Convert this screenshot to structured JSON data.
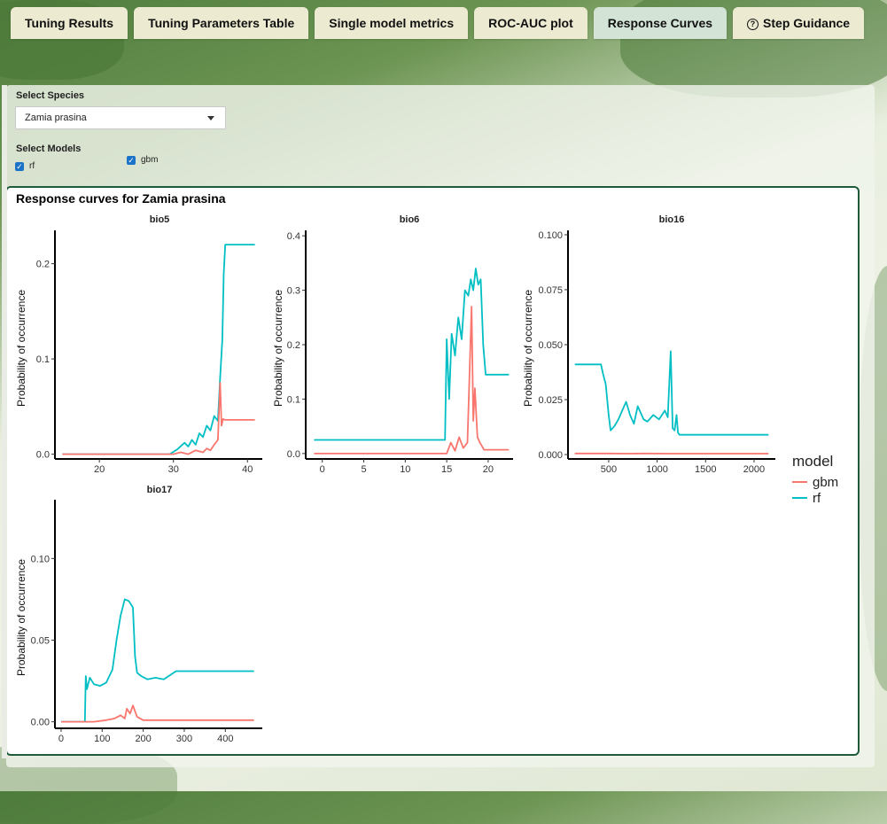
{
  "tabs": [
    {
      "label": "Tuning Results"
    },
    {
      "label": "Tuning Parameters Table"
    },
    {
      "label": "Single model metrics"
    },
    {
      "label": "ROC-AUC plot"
    },
    {
      "label": "Response Curves"
    },
    {
      "label": "Step Guidance"
    }
  ],
  "active_tab": "Response Curves",
  "species": {
    "label": "Select Species",
    "selected": "Zamia prasina"
  },
  "models": {
    "label": "Select Models",
    "options": [
      {
        "label": "rf",
        "checked": true
      },
      {
        "label": "gbm",
        "checked": true
      }
    ]
  },
  "panel": {
    "title": "Response curves for Zamia prasina"
  },
  "colors": {
    "gbm": "#f8766d",
    "rf": "#00bfc4",
    "panel_border": "#1f5a3a",
    "active_tab": "#d3e4d6",
    "tab": "#ecebd2"
  },
  "chart_data": {
    "type": "line",
    "ylabel": "Probability of occurrence",
    "legend": {
      "title": "model",
      "entries": [
        "gbm",
        "rf"
      ],
      "placement": "right"
    },
    "panels": [
      {
        "title": "bio5",
        "xlim": [
          14,
          42
        ],
        "ylim": [
          -0.005,
          0.235
        ],
        "xticks": [
          20,
          30,
          40
        ],
        "yticks": [
          0.0,
          0.1,
          0.2
        ],
        "ytick_labels": [
          "0.0",
          "0.1",
          "0.2"
        ],
        "series": [
          {
            "name": "rf",
            "x": [
              15,
              29.5,
              30.5,
              31.5,
              32,
              32.5,
              33,
              33.5,
              34,
              34.5,
              35,
              35.5,
              36,
              36.3,
              36.6,
              36.8,
              37,
              41
            ],
            "y": [
              0,
              0,
              0.005,
              0.012,
              0.008,
              0.015,
              0.01,
              0.022,
              0.018,
              0.03,
              0.025,
              0.04,
              0.035,
              0.08,
              0.12,
              0.19,
              0.22,
              0.22
            ]
          },
          {
            "name": "gbm",
            "x": [
              15,
              30,
              31,
              32,
              33,
              34,
              34.5,
              35,
              35.5,
              36,
              36.3,
              36.5,
              36.7,
              37,
              41
            ],
            "y": [
              0,
              0,
              0.002,
              0,
              0.004,
              0.002,
              0.006,
              0.004,
              0.01,
              0.015,
              0.075,
              0.03,
              0.037,
              0.036,
              0.036
            ]
          }
        ]
      },
      {
        "title": "bio6",
        "xlim": [
          -2,
          23
        ],
        "ylim": [
          -0.01,
          0.41
        ],
        "xticks": [
          0,
          5,
          10,
          15,
          20
        ],
        "yticks": [
          0.0,
          0.1,
          0.2,
          0.3,
          0.4
        ],
        "ytick_labels": [
          "0.0",
          "0.1",
          "0.2",
          "0.3",
          "0.4"
        ],
        "series": [
          {
            "name": "rf",
            "x": [
              -1,
              14.8,
              15,
              15.3,
              15.6,
              16,
              16.4,
              16.8,
              17.2,
              17.6,
              17.9,
              18.2,
              18.5,
              18.8,
              19.1,
              19.4,
              19.7,
              22.5
            ],
            "y": [
              0.025,
              0.025,
              0.21,
              0.1,
              0.22,
              0.18,
              0.25,
              0.21,
              0.3,
              0.29,
              0.32,
              0.3,
              0.34,
              0.31,
              0.32,
              0.2,
              0.145,
              0.145
            ]
          },
          {
            "name": "gbm",
            "x": [
              -1,
              15,
              15.5,
              16,
              16.5,
              17,
              17.5,
              18,
              18.2,
              18.4,
              18.7,
              19,
              19.5,
              22.5
            ],
            "y": [
              0,
              0,
              0.02,
              0.005,
              0.03,
              0.01,
              0.02,
              0.27,
              0.06,
              0.12,
              0.03,
              0.02,
              0.007,
              0.007
            ]
          }
        ]
      },
      {
        "title": "bio16",
        "xlim": [
          80,
          2220
        ],
        "ylim": [
          -0.002,
          0.102
        ],
        "xticks": [
          500,
          1000,
          1500,
          2000
        ],
        "yticks": [
          0.0,
          0.025,
          0.05,
          0.075,
          0.1
        ],
        "ytick_labels": [
          "0.000",
          "0.025",
          "0.050",
          "0.075",
          "0.100"
        ],
        "series": [
          {
            "name": "rf",
            "x": [
              150,
              420,
              440,
              470,
              500,
              520,
              560,
              600,
              640,
              680,
              720,
              760,
              800,
              860,
              900,
              960,
              1020,
              1080,
              1110,
              1140,
              1160,
              1180,
              1200,
              1215,
              1230,
              2150
            ],
            "y": [
              0.041,
              0.041,
              0.037,
              0.032,
              0.018,
              0.011,
              0.013,
              0.016,
              0.02,
              0.024,
              0.018,
              0.014,
              0.022,
              0.016,
              0.015,
              0.018,
              0.016,
              0.02,
              0.017,
              0.047,
              0.012,
              0.011,
              0.018,
              0.01,
              0.009,
              0.009
            ]
          },
          {
            "name": "gbm",
            "x": [
              150,
              500,
              700,
              900,
              1100,
              1300,
              2150
            ],
            "y": [
              0.0005,
              0.0005,
              0.0004,
              0.0005,
              0.0004,
              0.0004,
              0.0004
            ]
          }
        ]
      },
      {
        "title": "bio17",
        "xlim": [
          -15,
          490
        ],
        "ylim": [
          -0.004,
          0.136
        ],
        "xticks": [
          0,
          100,
          200,
          300,
          400
        ],
        "yticks": [
          0.0,
          0.05,
          0.1
        ],
        "ytick_labels": [
          "0.00",
          "0.05",
          "0.10"
        ],
        "series": [
          {
            "name": "rf",
            "x": [
              0,
              58,
              60,
              63,
              70,
              80,
              95,
              110,
              125,
              135,
              145,
              155,
              165,
              175,
              180,
              185,
              195,
              210,
              230,
              250,
              280,
              470
            ],
            "y": [
              0,
              0,
              0.028,
              0.02,
              0.027,
              0.023,
              0.022,
              0.024,
              0.032,
              0.05,
              0.065,
              0.075,
              0.074,
              0.07,
              0.04,
              0.03,
              0.028,
              0.026,
              0.027,
              0.026,
              0.031,
              0.031
            ]
          },
          {
            "name": "gbm",
            "x": [
              0,
              80,
              110,
              130,
              145,
              155,
              160,
              168,
              175,
              185,
              200,
              470
            ],
            "y": [
              0,
              0,
              0.001,
              0.002,
              0.004,
              0.002,
              0.008,
              0.005,
              0.01,
              0.003,
              0.001,
              0.001
            ]
          }
        ]
      }
    ]
  }
}
